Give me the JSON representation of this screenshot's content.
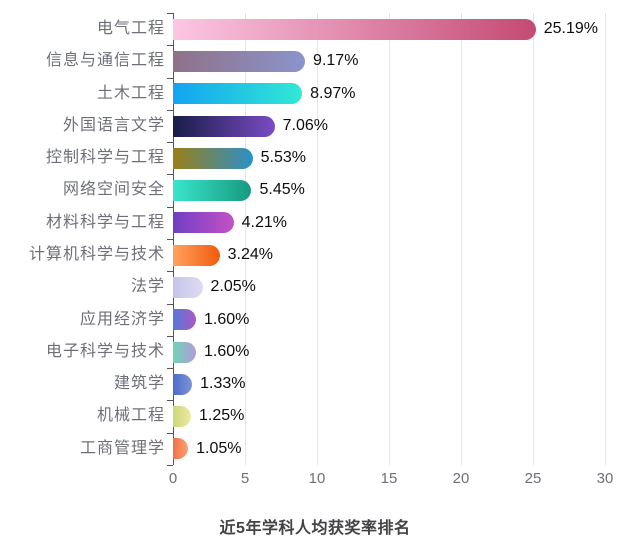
{
  "chart_data": {
    "type": "bar",
    "orientation": "horizontal",
    "title": "近5年学科人均获奖率排名",
    "categories": [
      "电气工程",
      "信息与通信工程",
      "土木工程",
      "外国语言文学",
      "控制科学与工程",
      "网络空间安全",
      "材料科学与工程",
      "计算机科学与技术",
      "法学",
      "应用经济学",
      "电子科学与技术",
      "建筑学",
      "机械工程",
      "工商管理学"
    ],
    "values": [
      25.19,
      9.17,
      8.97,
      7.06,
      5.53,
      5.45,
      4.21,
      3.24,
      2.05,
      1.6,
      1.6,
      1.33,
      1.25,
      1.05
    ],
    "value_labels": [
      "25.19%",
      "9.17%",
      "8.97%",
      "7.06%",
      "5.53%",
      "5.45%",
      "4.21%",
      "3.24%",
      "2.05%",
      "1.60%",
      "1.60%",
      "1.33%",
      "1.25%",
      "1.05%"
    ],
    "bar_gradients": [
      {
        "from": "#fcc7e3",
        "to": "#c44a73"
      },
      {
        "from": "#8f7188",
        "to": "#8b94cc"
      },
      {
        "from": "#12a3f2",
        "to": "#32e8d3"
      },
      {
        "from": "#191d49",
        "to": "#7a4cc3"
      },
      {
        "from": "#9b7f17",
        "to": "#2b90c9"
      },
      {
        "from": "#38e5cb",
        "to": "#189a80"
      },
      {
        "from": "#6f3fc2",
        "to": "#c452c7"
      },
      {
        "from": "#ffa35f",
        "to": "#f25a0d"
      },
      {
        "from": "#c6c5e9",
        "to": "#dedbf2"
      },
      {
        "from": "#5577d4",
        "to": "#aa5ac5"
      },
      {
        "from": "#6fd3b4",
        "to": "#b29bd9"
      },
      {
        "from": "#4a6ec8",
        "to": "#7e92d8"
      },
      {
        "from": "#c9d877",
        "to": "#efe9a2"
      },
      {
        "from": "#f3704a",
        "to": "#fba271"
      }
    ],
    "x_ticks": [
      "0",
      "5",
      "10",
      "15",
      "20",
      "25",
      "30"
    ],
    "xlim": [
      0,
      30
    ],
    "grid": true,
    "legend": false,
    "xlabel": "",
    "ylabel": ""
  },
  "colors": {
    "background": "#ffffff",
    "grid_line": "#e3e6ee",
    "axis_line": "#54565c",
    "category_label": "#6e7079",
    "tick_label": "#6e7079",
    "value_label": "#0d0d0d",
    "title": "#434347"
  }
}
